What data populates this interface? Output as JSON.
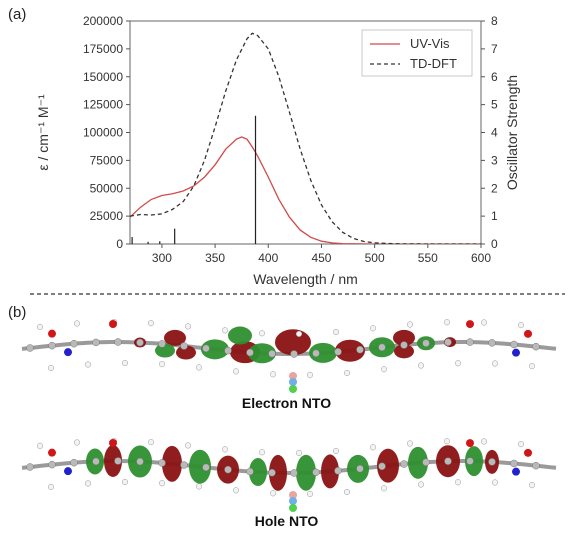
{
  "panel_a": {
    "label": "(a)"
  },
  "panel_b": {
    "label": "(b)",
    "electron_label": "Electron NTO",
    "hole_label": "Hole NTO"
  },
  "colors": {
    "uvvis": "#d24b4b",
    "tddft": "#333333",
    "stick": "#222222",
    "lobe_red": "#8b1212",
    "lobe_green": "#2e8f2e"
  },
  "chart_data": {
    "type": "line",
    "xlabel": "Wavelength / nm",
    "ylabel_left": "ε / cm⁻¹ M⁻¹",
    "ylabel_right": "Oscillator Strength",
    "xlim": [
      270,
      600
    ],
    "ylim_left": [
      0,
      200000
    ],
    "ylim_right": [
      0,
      8
    ],
    "x_ticks": [
      "300",
      "350",
      "400",
      "450",
      "500",
      "550",
      "600"
    ],
    "y_left_ticks": [
      "0",
      "25000",
      "50000",
      "75000",
      "100000",
      "125000",
      "150000",
      "175000",
      "200000"
    ],
    "y_right_ticks": [
      "0",
      "1",
      "2",
      "3",
      "4",
      "5",
      "6",
      "7",
      "8"
    ],
    "legend_position": "top-right",
    "series": [
      {
        "name": "UV-Vis",
        "style": "solid",
        "axis": "left",
        "x": [
          270,
          280,
          290,
          300,
          310,
          320,
          330,
          340,
          350,
          360,
          370,
          375,
          380,
          385,
          390,
          400,
          410,
          420,
          430,
          440,
          450,
          460,
          470,
          480,
          500,
          550,
          600
        ],
        "y": [
          24000,
          33000,
          40000,
          43500,
          45000,
          47500,
          52000,
          60000,
          71000,
          85000,
          94000,
          96000,
          94000,
          87000,
          79000,
          60000,
          40000,
          24000,
          12500,
          6000,
          2500,
          1000,
          400,
          200,
          0,
          0,
          0
        ]
      },
      {
        "name": "TD-DFT",
        "style": "dashed",
        "axis": "left",
        "x": [
          270,
          280,
          290,
          300,
          310,
          320,
          330,
          340,
          350,
          360,
          370,
          380,
          385,
          390,
          400,
          410,
          420,
          430,
          440,
          450,
          460,
          470,
          480,
          490,
          500,
          520,
          550,
          600
        ],
        "y": [
          25000,
          26500,
          26000,
          27000,
          31000,
          38000,
          52000,
          75000,
          105000,
          137000,
          165000,
          184000,
          189000,
          187000,
          175000,
          150000,
          118000,
          85000,
          57000,
          35000,
          20000,
          10500,
          5000,
          2200,
          1000,
          200,
          0,
          0
        ]
      }
    ],
    "sticks": {
      "axis": "right",
      "x": [
        272,
        287,
        298,
        312,
        388
      ],
      "f": [
        0.25,
        0.08,
        0.1,
        0.55,
        4.6
      ]
    }
  }
}
